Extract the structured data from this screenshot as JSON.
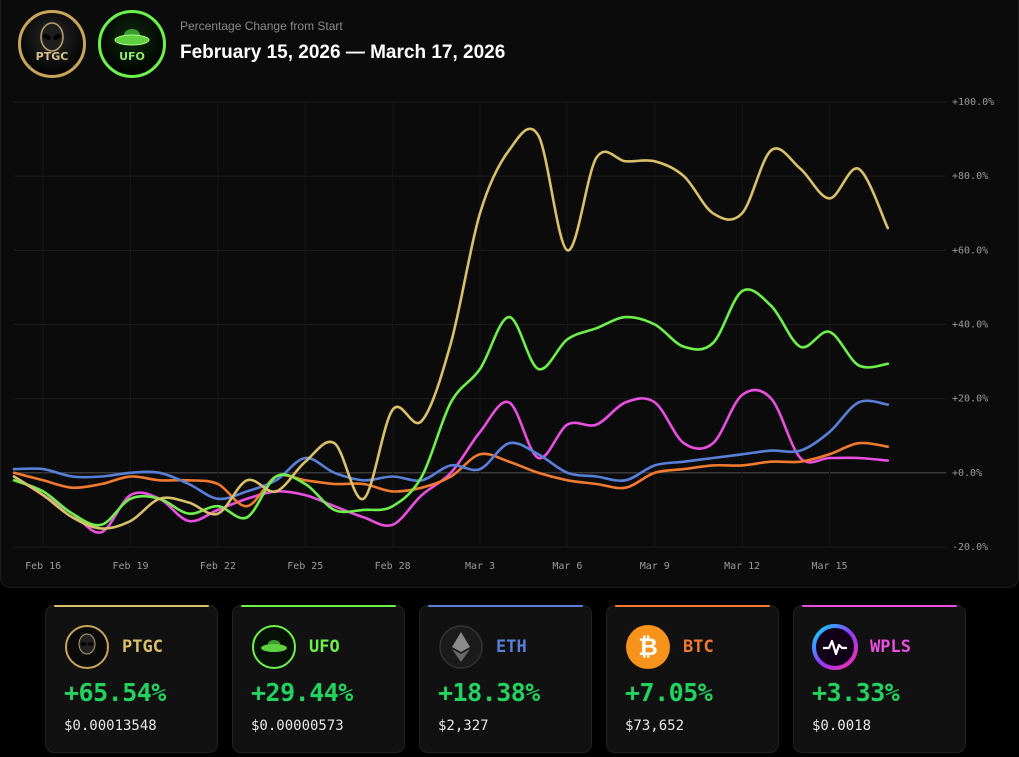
{
  "header": {
    "subtitle": "Percentage Change from Start",
    "title": "February 15, 2026 — March 17, 2026",
    "logos": [
      {
        "name": "PTGC",
        "icon": "alien-head-icon"
      },
      {
        "name": "UFO",
        "icon": "ufo-saucer-icon"
      }
    ]
  },
  "chart_data": {
    "type": "line",
    "subtitle": "Percentage Change from Start",
    "title": "February 15, 2026 — March 17, 2026",
    "x_tick_labels": [
      "Feb 16",
      "Feb 19",
      "Feb 22",
      "Feb 25",
      "Feb 28",
      "Mar 3",
      "Mar 6",
      "Mar 9",
      "Mar 12",
      "Mar 15"
    ],
    "y_tick_labels": [
      "+100.0%",
      "+80.0%",
      "+60.0%",
      "+40.0%",
      "+20.0%",
      "+0.0%",
      "-20.0%"
    ],
    "ylim": [
      -20,
      100
    ],
    "xlim": [
      0,
      32
    ],
    "grid": true,
    "x_unit": "day from Feb 15",
    "series": [
      {
        "name": "PTGC",
        "color": "#d9c06a",
        "x": [
          0,
          1,
          2,
          3,
          4,
          5,
          6,
          7,
          8,
          9,
          10,
          11,
          12,
          13,
          14,
          15,
          16,
          17,
          18,
          19,
          20,
          21,
          22,
          23,
          24,
          25,
          26,
          27,
          28,
          29,
          30
        ],
        "y": [
          -1,
          -6,
          -12,
          -15,
          -13,
          -7,
          -8,
          -11,
          -2,
          -5,
          3,
          8,
          -7,
          17,
          14,
          35,
          70,
          87,
          91,
          60,
          85,
          84,
          84,
          80,
          70,
          70,
          87,
          82,
          74,
          82,
          66
        ]
      },
      {
        "name": "UFO",
        "color": "#6df04b",
        "x": [
          0,
          1,
          2,
          3,
          4,
          5,
          6,
          7,
          8,
          9,
          10,
          11,
          12,
          13,
          14,
          15,
          16,
          17,
          18,
          19,
          20,
          21,
          22,
          23,
          24,
          25,
          26,
          27,
          28,
          29,
          30
        ],
        "y": [
          -2,
          -5,
          -11,
          -14,
          -7,
          -7,
          -11,
          -9,
          -12,
          -1,
          -3,
          -10,
          -10,
          -9,
          -1,
          19,
          28,
          42,
          28,
          36,
          39,
          42,
          40,
          34,
          35,
          49,
          45,
          34,
          38,
          29,
          29.4
        ]
      },
      {
        "name": "ETH",
        "color": "#5a7fd8",
        "x": [
          0,
          1,
          2,
          3,
          4,
          5,
          6,
          7,
          8,
          9,
          10,
          11,
          12,
          13,
          14,
          15,
          16,
          17,
          18,
          19,
          20,
          21,
          22,
          23,
          24,
          25,
          26,
          27,
          28,
          29,
          30
        ],
        "y": [
          1,
          1,
          -1,
          -1,
          0,
          0,
          -3,
          -7,
          -5,
          -2,
          4,
          0,
          -2,
          -1,
          -2,
          2,
          1,
          8,
          5,
          0,
          -1,
          -2,
          2,
          3,
          4,
          5,
          6,
          6,
          11,
          19,
          18.4
        ]
      },
      {
        "name": "BTC",
        "color": "#f07a30",
        "x": [
          0,
          1,
          2,
          3,
          4,
          5,
          6,
          7,
          8,
          9,
          10,
          11,
          12,
          13,
          14,
          15,
          16,
          17,
          18,
          19,
          20,
          21,
          22,
          23,
          24,
          25,
          26,
          27,
          28,
          29,
          30
        ],
        "y": [
          0,
          -2,
          -4,
          -3,
          -1,
          -2,
          -2,
          -3,
          -9,
          -1,
          -2,
          -3,
          -3,
          -5,
          -4,
          -1,
          5,
          3,
          0,
          -2,
          -3,
          -4,
          0,
          1,
          2,
          2,
          3,
          3,
          5,
          8,
          7.05
        ]
      },
      {
        "name": "WPLS",
        "color": "#e94fe0",
        "x": [
          0,
          1,
          2,
          3,
          4,
          5,
          6,
          7,
          8,
          9,
          10,
          11,
          12,
          13,
          14,
          15,
          16,
          17,
          18,
          19,
          20,
          21,
          22,
          23,
          24,
          25,
          26,
          27,
          28,
          29,
          30
        ],
        "y": [
          -1,
          -6,
          -11,
          -16,
          -6,
          -7,
          -13,
          -10,
          -7,
          -5,
          -6,
          -9,
          -12,
          -14,
          -6,
          0,
          11,
          19,
          4,
          13,
          13,
          19,
          19,
          8,
          8,
          21,
          20,
          4,
          4,
          4,
          3.3
        ]
      }
    ]
  },
  "cards": [
    {
      "name": "PTGC",
      "change": "+65.54%",
      "price": "$0.00013548",
      "color": "#d9c06a",
      "icon": "ptgc-alien-icon"
    },
    {
      "name": "UFO",
      "change": "+29.44%",
      "price": "$0.00000573",
      "color": "#6df04b",
      "icon": "ufo-saucer-icon"
    },
    {
      "name": "ETH",
      "change": "+18.38%",
      "price": "$2,327",
      "color": "#5a7fd8",
      "icon": "ethereum-icon"
    },
    {
      "name": "BTC",
      "change": "+7.05%",
      "price": "$73,652",
      "color": "#f07a30",
      "icon": "bitcoin-icon"
    },
    {
      "name": "WPLS",
      "change": "+3.33%",
      "price": "$0.0018",
      "color": "#e94fe0",
      "icon": "wpls-pulse-icon"
    }
  ]
}
